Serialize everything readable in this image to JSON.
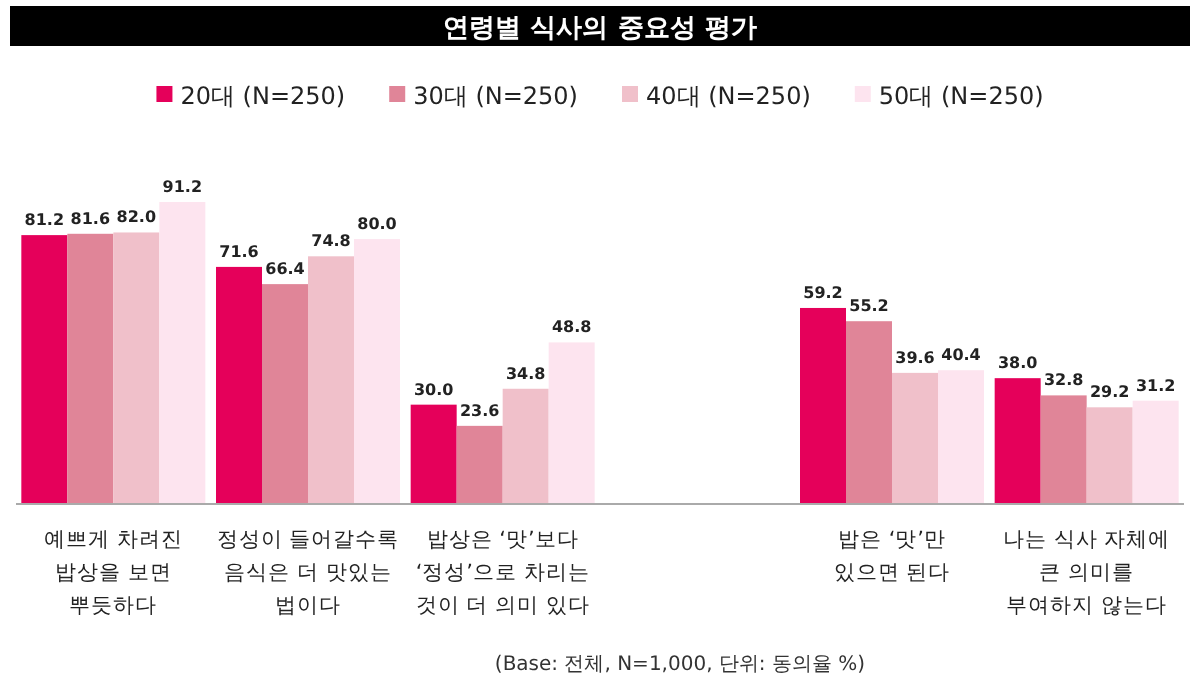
{
  "chart_data": {
    "type": "bar",
    "title": "연령별 식사의 중요성 평가",
    "categories": [
      "예쁘게 차려진\n밥상을 보면\n뿌듯하다",
      "정성이 들어갈수록\n음식은 더 맛있는\n법이다",
      "밥상은 ‘맛’보다\n‘정성’으로 차리는\n것이 더 의미 있다",
      null,
      "밥은 ‘맛’만\n있으면 된다",
      "나는 식사 자체에\n큰 의미를\n부여하지 않는다"
    ],
    "series": [
      {
        "name": "20대 (N=250)",
        "color": "#e5005a",
        "values": [
          81.2,
          71.6,
          30.0,
          null,
          59.2,
          38.0
        ],
        "value_labels": [
          "81.2",
          "71.6",
          "30.0",
          null,
          "59.2",
          "38.0"
        ]
      },
      {
        "name": "30대 (N=250)",
        "color": "#e08598",
        "values": [
          81.6,
          66.4,
          23.6,
          null,
          55.2,
          32.8
        ],
        "value_labels": [
          "81.6",
          "66.4",
          "23.6",
          null,
          "55.2",
          "32.8"
        ]
      },
      {
        "name": "40대 (N=250)",
        "color": "#f0c0ca",
        "values": [
          82.0,
          74.8,
          34.8,
          null,
          39.6,
          29.2
        ],
        "value_labels": [
          "82.0",
          "74.8",
          "34.8",
          null,
          "39.6",
          "29.2"
        ]
      },
      {
        "name": "50대 (N=250)",
        "color": "#fde4ef",
        "values": [
          91.2,
          80.0,
          48.8,
          null,
          40.4,
          31.2
        ],
        "value_labels": [
          "91.2",
          "80.0",
          "48.8",
          null,
          "40.4",
          "31.2"
        ]
      }
    ],
    "legend": "top",
    "annotations": [
      "(Base: 전체, N=1,000, 단위: 동의율 %)"
    ]
  }
}
